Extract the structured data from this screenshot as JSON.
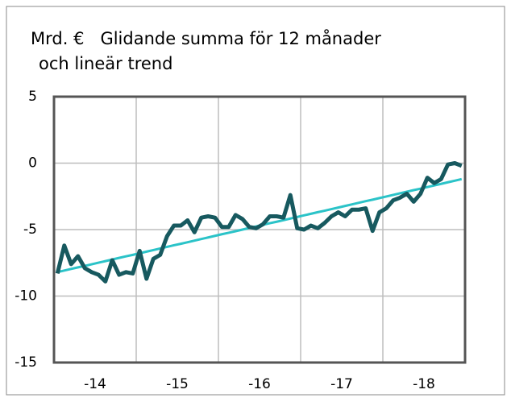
{
  "chart_data": {
    "type": "line",
    "title": "Mrd. €   Glidande summa för 12 månader",
    "subtitle": "och lineär trend",
    "categories": [
      null,
      null,
      null,
      null,
      null,
      null,
      "-14",
      null,
      null,
      null,
      null,
      null,
      null,
      null,
      null,
      null,
      null,
      null,
      "-15",
      null,
      null,
      null,
      null,
      null,
      null,
      null,
      null,
      null,
      null,
      null,
      "-16",
      null,
      null,
      null,
      null,
      null,
      null,
      null,
      null,
      null,
      null,
      null,
      "-17",
      null,
      null,
      null,
      null,
      null,
      null,
      null,
      null,
      null,
      null,
      null,
      "-18",
      null,
      null,
      null,
      null,
      null
    ],
    "series": [
      {
        "color": "#17595f",
        "values": [
          -8.3,
          -6.2,
          -7.6,
          -7.0,
          -7.9,
          -8.2,
          -8.4,
          -8.9,
          -7.3,
          -8.4,
          -8.2,
          -8.3,
          -6.6,
          -8.7,
          -7.2,
          -6.9,
          -5.5,
          -4.7,
          -4.7,
          -4.3,
          -5.2,
          -4.1,
          -4.0,
          -4.1,
          -4.8,
          -4.8,
          -3.9,
          -4.2,
          -4.8,
          -4.9,
          -4.6,
          -4.0,
          -4.0,
          -4.1,
          -2.4,
          -4.9,
          -5.0,
          -4.7,
          -4.9,
          -4.5,
          -4.0,
          -3.7,
          -4.0,
          -3.5,
          -3.5,
          -3.4,
          -5.1,
          -3.7,
          -3.4,
          -2.8,
          -2.6,
          -2.3,
          -2.9,
          -2.3,
          -1.1,
          -1.5,
          -1.2,
          -0.1,
          0.0,
          -0.2
        ]
      },
      {
        "color": "#2bc3c8",
        "values": [
          -8.2,
          -8.08,
          -7.96,
          -7.84,
          -7.73,
          -7.61,
          -7.49,
          -7.37,
          -7.25,
          -7.13,
          -7.01,
          -6.9,
          -6.78,
          -6.66,
          -6.54,
          -6.42,
          -6.3,
          -6.18,
          -6.07,
          -5.95,
          -5.83,
          -5.71,
          -5.59,
          -5.47,
          -5.35,
          -5.24,
          -5.12,
          -5.0,
          -4.88,
          -4.76,
          -4.64,
          -4.52,
          -4.41,
          -4.29,
          -4.17,
          -4.05,
          -3.93,
          -3.81,
          -3.69,
          -3.58,
          -3.46,
          -3.34,
          -3.22,
          -3.1,
          -2.98,
          -2.86,
          -2.75,
          -2.63,
          -2.51,
          -2.39,
          -2.27,
          -2.15,
          -2.03,
          -1.92,
          -1.8,
          -1.68,
          -1.56,
          -1.44,
          -1.32,
          -1.2
        ]
      }
    ],
    "ylim": [
      -15,
      5
    ],
    "yticks": [
      -15,
      -10,
      -5,
      0,
      5
    ],
    "grid": true
  }
}
